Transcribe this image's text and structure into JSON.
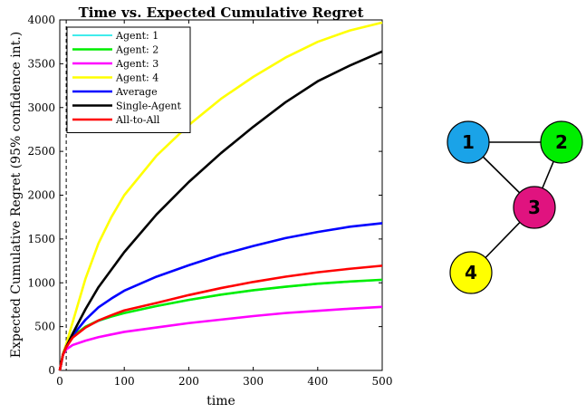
{
  "chart_data": {
    "type": "line",
    "title": "Time vs. Expected Cumulative Regret",
    "xlabel": "time",
    "ylabel": "Expected Cumulative Regret (95% confidence int.)",
    "xlim": [
      0,
      500
    ],
    "ylim": [
      0,
      4000
    ],
    "xticks": [
      "0",
      "100",
      "200",
      "300",
      "400",
      "500"
    ],
    "yticks": [
      "0",
      "500",
      "1000",
      "1500",
      "2000",
      "2500",
      "3000",
      "3500",
      "4000"
    ],
    "grid": false,
    "legend_position": "top-left",
    "vline_x": 10,
    "x": [
      0,
      5,
      10,
      20,
      40,
      60,
      80,
      100,
      150,
      200,
      250,
      300,
      350,
      400,
      450,
      500
    ],
    "series": [
      {
        "name": "Agent: 1",
        "color": "#00e5e5",
        "values": [
          0,
          180,
          260,
          380,
          490,
          560,
          610,
          650,
          730,
          800,
          860,
          910,
          950,
          985,
          1010,
          1030
        ]
      },
      {
        "name": "Agent: 2",
        "color": "#00ee00",
        "values": [
          0,
          180,
          260,
          390,
          500,
          570,
          615,
          655,
          735,
          805,
          865,
          915,
          955,
          990,
          1015,
          1035
        ]
      },
      {
        "name": "Agent: 3",
        "color": "#ff00ff",
        "values": [
          0,
          180,
          240,
          290,
          340,
          380,
          410,
          440,
          490,
          540,
          580,
          620,
          655,
          680,
          705,
          725
        ]
      },
      {
        "name": "Agent: 4",
        "color": "#ffff00",
        "values": [
          0,
          190,
          300,
          550,
          1050,
          1450,
          1750,
          2000,
          2450,
          2800,
          3100,
          3350,
          3570,
          3750,
          3880,
          3970
        ]
      },
      {
        "name": "Average",
        "color": "#0000ff",
        "values": [
          0,
          180,
          270,
          400,
          580,
          720,
          820,
          910,
          1070,
          1200,
          1320,
          1420,
          1510,
          1580,
          1640,
          1680
        ]
      },
      {
        "name": "Single-Agent",
        "color": "#000000",
        "values": [
          0,
          185,
          270,
          420,
          700,
          950,
          1150,
          1350,
          1780,
          2150,
          2480,
          2780,
          3060,
          3300,
          3480,
          3640
        ]
      },
      {
        "name": "All-to-All",
        "color": "#ff0000",
        "values": [
          0,
          180,
          265,
          375,
          490,
          570,
          630,
          685,
          770,
          860,
          940,
          1010,
          1070,
          1120,
          1160,
          1195
        ]
      }
    ]
  },
  "graph": {
    "nodes": [
      {
        "label": "1",
        "color": "#1aa3e8"
      },
      {
        "label": "2",
        "color": "#00ee00"
      },
      {
        "label": "3",
        "color": "#e0137f"
      },
      {
        "label": "4",
        "color": "#ffff00"
      }
    ],
    "edges": [
      [
        "1",
        "2"
      ],
      [
        "1",
        "3"
      ],
      [
        "2",
        "3"
      ],
      [
        "3",
        "4"
      ]
    ]
  }
}
